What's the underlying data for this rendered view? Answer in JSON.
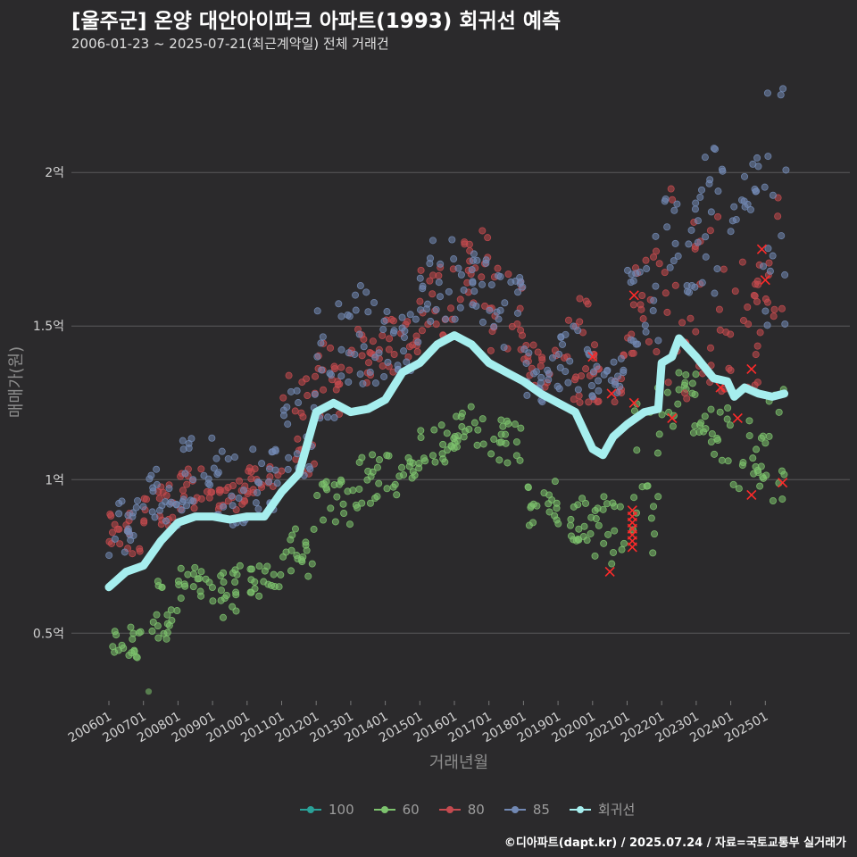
{
  "header": {
    "title": "[울주군] 온양 대안아이파크 아파트(1993) 회귀선 예측",
    "subtitle": "2006-01-23 ~ 2025-07-21(최근계약일) 전체 거래건"
  },
  "caption": "©디아파트(dapt.kr) / 2025.07.24 / 자료=국토교통부 실거래가",
  "chart_data": {
    "type": "scatter",
    "xlabel": "거래년월",
    "ylabel": "매매가(원)",
    "x_ticks": [
      "200601",
      "200701",
      "200801",
      "200901",
      "201001",
      "201101",
      "201201",
      "201301",
      "201401",
      "201501",
      "201601",
      "201701",
      "201801",
      "201901",
      "202001",
      "202101",
      "202201",
      "202301",
      "202401",
      "202501"
    ],
    "y_ticks": [
      "0.5억",
      "1억",
      "1.5억",
      "2억"
    ],
    "y_tick_values": [
      0.5,
      1.0,
      1.5,
      2.0
    ],
    "x_range": [
      2006.0,
      2025.6
    ],
    "y_range": [
      0.28,
      2.3
    ],
    "grid": "horizontal",
    "legend_position": "bottom",
    "colors": {
      "100": "#2aa198",
      "60": "#7dc36e",
      "80": "#c44a4f",
      "85": "#7289b4",
      "trend": "#a6eeee",
      "cancelled": "#ff2a2a"
    },
    "legend": [
      "100",
      "60",
      "80",
      "85",
      "회귀선"
    ],
    "series_ranges": [
      {
        "name": "60",
        "points_by_year": [
          [
            2006.0,
            0.4,
            0.52
          ],
          [
            2007.0,
            0.48,
            0.68
          ],
          [
            2008.0,
            0.58,
            0.72
          ],
          [
            2009.0,
            0.55,
            0.72
          ],
          [
            2010.0,
            0.62,
            0.72
          ],
          [
            2011.0,
            0.68,
            0.85
          ],
          [
            2012.0,
            0.85,
            1.0
          ],
          [
            2013.0,
            0.9,
            1.1
          ],
          [
            2014.0,
            0.95,
            1.08
          ],
          [
            2015.0,
            1.05,
            1.18
          ],
          [
            2016.0,
            1.1,
            1.25
          ],
          [
            2017.0,
            1.05,
            1.2
          ],
          [
            2018.0,
            0.85,
            1.0
          ],
          [
            2019.0,
            0.8,
            0.95
          ],
          [
            2020.0,
            0.72,
            0.95
          ],
          [
            2021.0,
            0.75,
            1.3
          ],
          [
            2022.0,
            1.15,
            1.35
          ],
          [
            2023.0,
            1.05,
            1.25
          ],
          [
            2024.0,
            0.95,
            1.2
          ],
          [
            2025.0,
            0.92,
            1.34
          ]
        ]
      },
      {
        "name": "80",
        "points_by_year": [
          [
            2006.0,
            0.75,
            0.9
          ],
          [
            2007.0,
            0.85,
            1.0
          ],
          [
            2008.0,
            0.9,
            1.05
          ],
          [
            2009.0,
            0.9,
            1.0
          ],
          [
            2010.0,
            0.95,
            1.05
          ],
          [
            2011.0,
            1.0,
            1.35
          ],
          [
            2012.0,
            1.2,
            1.45
          ],
          [
            2013.0,
            1.3,
            1.5
          ],
          [
            2014.0,
            1.35,
            1.55
          ],
          [
            2015.0,
            1.45,
            1.7
          ],
          [
            2016.0,
            1.55,
            1.85
          ],
          [
            2017.0,
            1.4,
            1.7
          ],
          [
            2018.0,
            1.3,
            1.45
          ],
          [
            2019.0,
            1.25,
            1.6
          ],
          [
            2020.0,
            1.25,
            1.45
          ],
          [
            2021.0,
            1.4,
            1.75
          ],
          [
            2022.0,
            1.2,
            1.95
          ],
          [
            2023.0,
            1.25,
            1.88
          ],
          [
            2024.0,
            1.3,
            1.75
          ],
          [
            2025.0,
            1.4,
            2.0
          ]
        ]
      },
      {
        "name": "85",
        "points_by_year": [
          [
            2006.0,
            0.75,
            0.95
          ],
          [
            2007.0,
            0.85,
            1.05
          ],
          [
            2008.0,
            0.9,
            1.17
          ],
          [
            2009.0,
            0.85,
            1.1
          ],
          [
            2010.0,
            0.9,
            1.1
          ],
          [
            2011.0,
            1.0,
            1.3
          ],
          [
            2012.0,
            1.2,
            1.6
          ],
          [
            2013.0,
            1.3,
            1.65
          ],
          [
            2014.0,
            1.35,
            1.55
          ],
          [
            2015.0,
            1.45,
            1.8
          ],
          [
            2016.0,
            1.5,
            1.75
          ],
          [
            2017.0,
            1.4,
            1.7
          ],
          [
            2018.0,
            1.25,
            1.45
          ],
          [
            2019.0,
            1.25,
            1.5
          ],
          [
            2020.0,
            1.25,
            1.4
          ],
          [
            2021.0,
            1.4,
            1.85
          ],
          [
            2022.0,
            1.6,
            1.96
          ],
          [
            2023.0,
            1.6,
            2.08
          ],
          [
            2024.0,
            1.6,
            2.05
          ],
          [
            2025.0,
            1.5,
            2.29
          ]
        ]
      }
    ],
    "trend_line": [
      [
        2006.0,
        0.65
      ],
      [
        2006.5,
        0.7
      ],
      [
        2007.0,
        0.72
      ],
      [
        2007.5,
        0.8
      ],
      [
        2008.0,
        0.86
      ],
      [
        2008.5,
        0.88
      ],
      [
        2009.0,
        0.88
      ],
      [
        2009.5,
        0.87
      ],
      [
        2010.0,
        0.88
      ],
      [
        2010.5,
        0.88
      ],
      [
        2011.0,
        0.96
      ],
      [
        2011.5,
        1.02
      ],
      [
        2012.0,
        1.22
      ],
      [
        2012.5,
        1.25
      ],
      [
        2013.0,
        1.22
      ],
      [
        2013.5,
        1.23
      ],
      [
        2014.0,
        1.26
      ],
      [
        2014.5,
        1.35
      ],
      [
        2015.0,
        1.38
      ],
      [
        2015.5,
        1.44
      ],
      [
        2016.0,
        1.47
      ],
      [
        2016.5,
        1.44
      ],
      [
        2017.0,
        1.38
      ],
      [
        2017.5,
        1.35
      ],
      [
        2018.0,
        1.32
      ],
      [
        2018.5,
        1.28
      ],
      [
        2019.0,
        1.25
      ],
      [
        2019.5,
        1.22
      ],
      [
        2020.0,
        1.1
      ],
      [
        2020.3,
        1.08
      ],
      [
        2020.6,
        1.14
      ],
      [
        2021.0,
        1.18
      ],
      [
        2021.5,
        1.22
      ],
      [
        2021.9,
        1.23
      ],
      [
        2022.0,
        1.38
      ],
      [
        2022.3,
        1.4
      ],
      [
        2022.5,
        1.46
      ],
      [
        2023.0,
        1.4
      ],
      [
        2023.5,
        1.33
      ],
      [
        2023.9,
        1.32
      ],
      [
        2024.1,
        1.27
      ],
      [
        2024.4,
        1.3
      ],
      [
        2024.8,
        1.28
      ],
      [
        2025.2,
        1.27
      ],
      [
        2025.55,
        1.28
      ]
    ]
  }
}
